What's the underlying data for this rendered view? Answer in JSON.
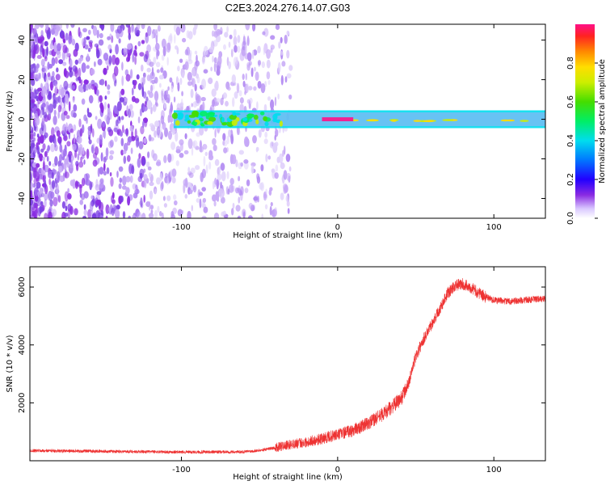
{
  "title": "C2E3.2024.276.14.07.G03",
  "chart_data": [
    {
      "type": "heatmap",
      "xlabel": "Height of straight line (km)",
      "ylabel": "Frequency (Hz)",
      "xlim": [
        -197,
        133
      ],
      "ylim": [
        -50,
        48
      ],
      "xticks": [
        -100,
        0,
        100
      ],
      "yticks": [
        -40,
        -20,
        0,
        20,
        40
      ],
      "xticklabels": [
        "-100",
        "0",
        "100"
      ],
      "yticklabels": [
        "-40",
        "-20",
        "0",
        "20",
        "40"
      ],
      "colorbar": {
        "label": "Normalized spectral amplitude",
        "range": [
          0,
          1
        ],
        "ticks": [
          0.0,
          0.2,
          0.4,
          0.6,
          0.8
        ],
        "ticklabels": [
          "0.0",
          "0.2",
          "0.4",
          "0.6",
          "0.8"
        ]
      },
      "features": [
        {
          "name": "scattered noise",
          "x_range": [
            -197,
            -30
          ],
          "freq_range": [
            -50,
            48
          ],
          "amplitude": 0.1
        },
        {
          "name": "carrier band",
          "x_range": [
            -105,
            133
          ],
          "freq_center": 0,
          "freq_halfwidth": 3,
          "amplitude": 0.4
        },
        {
          "name": "carrier peak",
          "x_range": [
            -10,
            10
          ],
          "freq_center": 0,
          "freq_halfwidth": 1,
          "amplitude": 0.95
        }
      ]
    },
    {
      "type": "line",
      "xlabel": "Height of straight line (km)",
      "ylabel": "SNR (10 * v/v)",
      "xlim": [
        -197,
        133
      ],
      "ylim": [
        0,
        6700
      ],
      "xticks": [
        -100,
        0,
        100
      ],
      "yticks": [
        2000,
        4000,
        6000
      ],
      "xticklabels": [
        "-100",
        "0",
        "100"
      ],
      "yticklabels": [
        "2000",
        "4000",
        "6000"
      ],
      "color": "#ee3333",
      "series": [
        {
          "x": [
            -197,
            -180,
            -160,
            -140,
            -120,
            -100,
            -80,
            -60,
            -50,
            -40,
            -30,
            -20,
            -10,
            0,
            10,
            20,
            30,
            40,
            45,
            50,
            55,
            60,
            65,
            70,
            75,
            80,
            85,
            90,
            95,
            100,
            110,
            120,
            133
          ],
          "y": [
            350,
            340,
            330,
            320,
            310,
            300,
            300,
            310,
            360,
            450,
            560,
            650,
            760,
            900,
            1050,
            1300,
            1650,
            2100,
            2600,
            3600,
            4200,
            4700,
            5200,
            5750,
            6050,
            6100,
            6000,
            5800,
            5650,
            5550,
            5500,
            5550,
            5600
          ]
        }
      ]
    }
  ]
}
